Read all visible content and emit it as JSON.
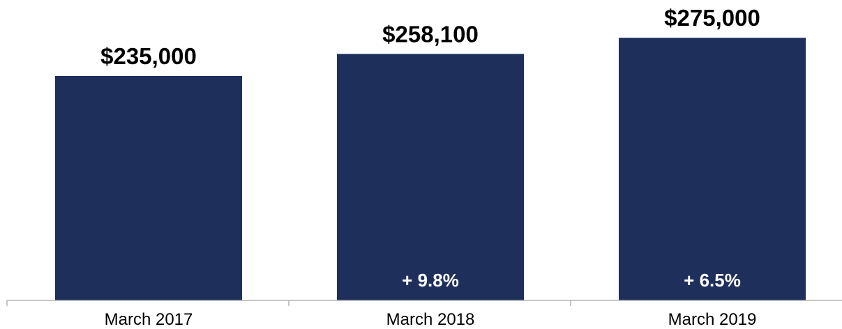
{
  "chart_data": {
    "type": "bar",
    "categories": [
      "March 2017",
      "March 2018",
      "March 2019"
    ],
    "values": [
      235000,
      258100,
      275000
    ],
    "value_labels": [
      "$235,000",
      "$258,100",
      "$275,000"
    ],
    "change_labels": [
      "",
      "+ 9.8%",
      "+ 6.5%"
    ],
    "title": "",
    "xlabel": "",
    "ylabel": "",
    "ylim": [
      0,
      285000
    ],
    "grid": false,
    "legend": "none",
    "bar_color": "#1f2f5c",
    "axis_color": "#b3b3b3"
  }
}
